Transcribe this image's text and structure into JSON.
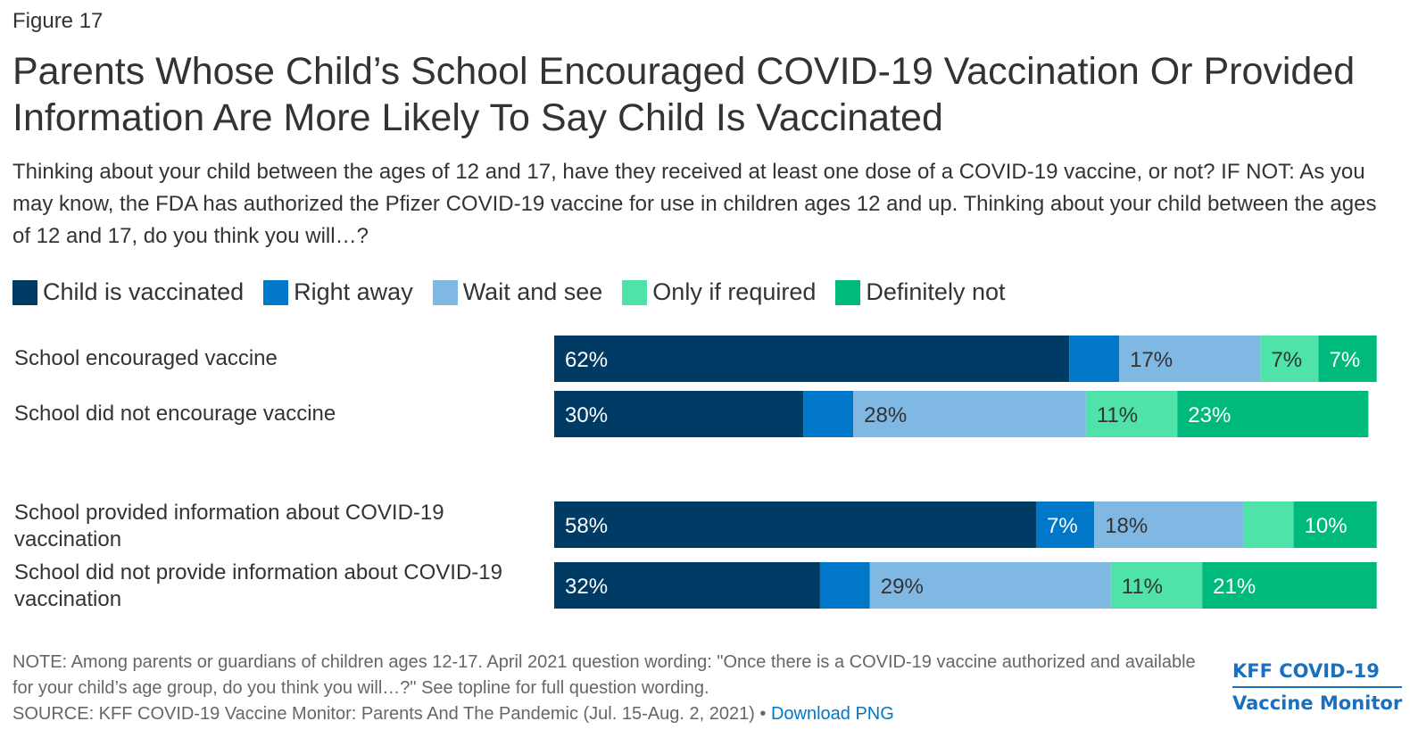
{
  "figure_label": "Figure 17",
  "title": "Parents Whose Child’s School Encouraged COVID-19 Vaccination Or Provided Information Are More Likely To Say Child Is Vaccinated",
  "subtitle": "Thinking about your child between the ages of 12 and 17, have they received at least one dose of a COVID-19 vaccine, or not? IF NOT: As you may know, the FDA has authorized the Pfizer COVID-19 vaccine for use in children ages 12 and up. Thinking about your child between the ages of 12 and 17, do you think you will…?",
  "note": "NOTE: Among parents or guardians of children ages 12-17. April 2021 question wording: \"Once there is a COVID-19 vaccine authorized and available for your child’s age group, do you think you will…?\" See topline for full question wording.",
  "source": "SOURCE: KFF COVID-19 Vaccine Monitor: Parents And The Pandemic (Jul. 15-Aug. 2, 2021) • ",
  "download_link": "Download PNG",
  "brand_line1": "KFF COVID-19",
  "brand_line2": "Vaccine Monitor",
  "chart_data": {
    "type": "bar",
    "orientation": "horizontal-stacked",
    "categories": [
      "School encouraged vaccine",
      "School did not encourage vaccine",
      "School provided information about COVID-19 vaccination",
      "School did not provide information about COVID-19 vaccination"
    ],
    "series": [
      {
        "name": "Child is vaccinated",
        "color": "#003b66",
        "values": [
          62,
          30,
          58,
          32
        ],
        "labels": [
          "62%",
          "30%",
          "58%",
          "32%"
        ]
      },
      {
        "name": "Right away",
        "color": "#0077c8",
        "values": [
          6,
          6,
          7,
          6
        ],
        "labels": [
          "",
          "",
          "7%",
          ""
        ]
      },
      {
        "name": "Wait and see",
        "color": "#7fb8e2",
        "values": [
          17,
          28,
          18,
          29
        ],
        "labels": [
          "17%",
          "28%",
          "18%",
          "29%"
        ]
      },
      {
        "name": "Only if required",
        "color": "#4fe3a9",
        "values": [
          7,
          11,
          6,
          11
        ],
        "labels": [
          "7%",
          "11%",
          "",
          "11%"
        ]
      },
      {
        "name": "Definitely not",
        "color": "#00b97c",
        "values": [
          7,
          23,
          10,
          21
        ],
        "labels": [
          "7%",
          "23%",
          "10%",
          "21%"
        ]
      }
    ],
    "xlim": [
      0,
      100
    ],
    "legend_position": "top"
  }
}
